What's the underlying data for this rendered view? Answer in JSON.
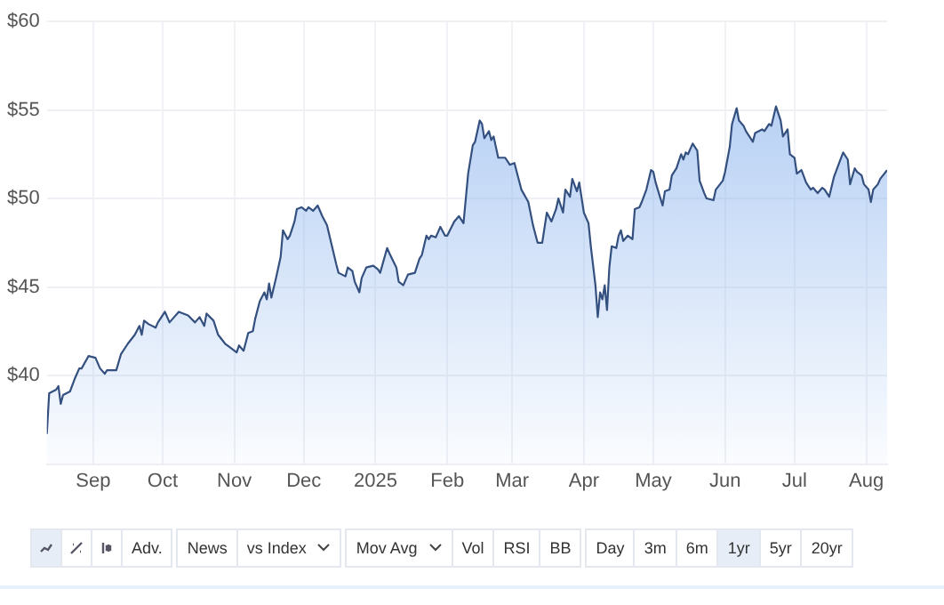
{
  "chart_data": {
    "type": "area",
    "x": [
      "2024-08-12",
      "2024-08-13",
      "2024-08-16",
      "2024-08-17",
      "2024-08-18",
      "2024-08-19",
      "2024-08-22",
      "2024-08-24",
      "2024-08-26",
      "2024-08-27",
      "2024-08-30",
      "2024-09-02",
      "2024-09-04",
      "2024-09-06",
      "2024-09-07",
      "2024-09-11",
      "2024-09-13",
      "2024-09-16",
      "2024-09-19",
      "2024-09-21",
      "2024-09-22",
      "2024-09-23",
      "2024-09-25",
      "2024-09-28",
      "2024-09-29",
      "2024-10-02",
      "2024-10-04",
      "2024-10-06",
      "2024-10-08",
      "2024-10-12",
      "2024-10-15",
      "2024-10-17",
      "2024-10-19",
      "2024-10-20",
      "2024-10-23",
      "2024-10-25",
      "2024-10-28",
      "2024-10-31",
      "2024-11-02",
      "2024-11-03",
      "2024-11-05",
      "2024-11-07",
      "2024-11-09",
      "2024-11-10",
      "2024-11-12",
      "2024-11-14",
      "2024-11-15",
      "2024-11-16",
      "2024-11-17",
      "2024-11-19",
      "2024-11-21",
      "2024-11-22",
      "2024-11-24",
      "2024-11-25",
      "2024-11-27",
      "2024-11-28",
      "2024-11-30",
      "2024-12-02",
      "2024-12-03",
      "2024-12-05",
      "2024-12-07",
      "2024-12-09",
      "2024-12-11",
      "2024-12-13",
      "2024-12-15",
      "2024-12-16",
      "2024-12-19",
      "2024-12-20",
      "2024-12-22",
      "2024-12-23",
      "2024-12-25",
      "2024-12-26",
      "2024-12-28",
      "2024-12-31",
      "2025-01-02",
      "2025-01-03",
      "2025-01-06",
      "2025-01-07",
      "2025-01-10",
      "2025-01-11",
      "2025-01-13",
      "2025-01-15",
      "2025-01-18",
      "2025-01-20",
      "2025-01-21",
      "2025-01-23",
      "2025-01-24",
      "2025-01-25",
      "2025-01-27",
      "2025-01-29",
      "2025-01-31",
      "2025-02-01",
      "2025-02-04",
      "2025-02-06",
      "2025-02-08",
      "2025-02-10",
      "2025-02-12",
      "2025-02-13",
      "2025-02-15",
      "2025-02-16",
      "2025-02-17",
      "2025-02-19",
      "2025-02-20",
      "2025-02-21",
      "2025-02-23",
      "2025-02-26",
      "2025-02-28",
      "2025-03-02",
      "2025-03-03",
      "2025-03-05",
      "2025-03-08",
      "2025-03-10",
      "2025-03-12",
      "2025-03-14",
      "2025-03-16",
      "2025-03-18",
      "2025-03-20",
      "2025-03-21",
      "2025-03-23",
      "2025-03-24",
      "2025-03-26",
      "2025-03-27",
      "2025-03-29",
      "2025-03-30",
      "2025-04-01",
      "2025-04-03",
      "2025-04-04",
      "2025-04-06",
      "2025-04-07",
      "2025-04-08",
      "2025-04-09",
      "2025-04-10",
      "2025-04-11",
      "2025-04-12",
      "2025-04-13",
      "2025-04-15",
      "2025-04-16",
      "2025-04-17",
      "2025-04-18",
      "2025-04-20",
      "2025-04-22",
      "2025-04-23",
      "2025-04-25",
      "2025-04-26",
      "2025-04-28",
      "2025-04-30",
      "2025-05-01",
      "2025-05-02",
      "2025-05-05",
      "2025-05-06",
      "2025-05-08",
      "2025-05-09",
      "2025-05-11",
      "2025-05-13",
      "2025-05-14",
      "2025-05-15",
      "2025-05-16",
      "2025-05-18",
      "2025-05-20",
      "2025-05-21",
      "2025-05-23",
      "2025-05-24",
      "2025-05-27",
      "2025-05-28",
      "2025-05-31",
      "2025-06-01",
      "2025-06-03",
      "2025-06-04",
      "2025-06-06",
      "2025-06-07",
      "2025-06-09",
      "2025-06-10",
      "2025-06-13",
      "2025-06-14",
      "2025-06-17",
      "2025-06-18",
      "2025-06-20",
      "2025-06-21",
      "2025-06-23",
      "2025-06-25",
      "2025-06-26",
      "2025-06-28",
      "2025-06-29",
      "2025-07-01",
      "2025-07-02",
      "2025-07-04",
      "2025-07-06",
      "2025-07-08",
      "2025-07-09",
      "2025-07-11",
      "2025-07-13",
      "2025-07-14",
      "2025-07-16",
      "2025-07-18",
      "2025-07-20",
      "2025-07-22",
      "2025-07-24",
      "2025-07-25",
      "2025-07-27",
      "2025-07-28",
      "2025-07-30",
      "2025-07-31",
      "2025-08-02",
      "2025-08-03",
      "2025-08-04",
      "2025-08-06",
      "2025-08-07",
      "2025-08-10"
    ],
    "series": [
      {
        "color": "#34507f",
        "values": [
          36.7,
          39.0,
          39.2,
          39.4,
          38.4,
          38.9,
          39.1,
          39.8,
          40.4,
          40.4,
          41.1,
          41.0,
          40.4,
          40.1,
          40.3,
          40.3,
          41.2,
          41.8,
          42.3,
          42.8,
          42.3,
          43.1,
          42.9,
          42.7,
          43.0,
          43.6,
          43.0,
          43.3,
          43.6,
          43.4,
          43.0,
          43.3,
          42.8,
          43.5,
          43.1,
          42.3,
          41.8,
          41.5,
          41.3,
          41.7,
          41.4,
          42.4,
          42.5,
          43.2,
          44.2,
          44.7,
          44.3,
          45.2,
          44.4,
          45.5,
          46.7,
          48.2,
          47.7,
          47.9,
          48.7,
          49.4,
          49.5,
          49.3,
          49.5,
          49.3,
          49.6,
          49.0,
          48.5,
          47.4,
          46.3,
          45.8,
          45.6,
          46.1,
          45.9,
          45.3,
          44.7,
          45.5,
          46.1,
          46.2,
          46.0,
          45.8,
          47.2,
          46.9,
          46.1,
          45.3,
          45.1,
          45.7,
          45.8,
          46.6,
          46.8,
          47.9,
          47.7,
          47.9,
          47.8,
          48.4,
          47.9,
          47.9,
          48.7,
          49.0,
          48.6,
          51.4,
          53.0,
          53.2,
          54.4,
          54.2,
          53.4,
          53.8,
          53.3,
          53.5,
          52.3,
          52.3,
          51.9,
          52.0,
          51.5,
          50.5,
          49.8,
          48.5,
          47.5,
          47.5,
          49.2,
          48.7,
          49.4,
          50.0,
          49.2,
          50.5,
          50.1,
          51.1,
          50.4,
          50.9,
          49.2,
          48.6,
          47.3,
          45.1,
          43.3,
          44.7,
          44.3,
          45.1,
          43.7,
          46.1,
          47.3,
          47.2,
          47.9,
          48.2,
          47.6,
          47.9,
          47.7,
          49.4,
          49.5,
          49.8,
          50.5,
          51.6,
          51.5,
          50.9,
          49.6,
          50.4,
          50.5,
          51.3,
          51.7,
          52.5,
          52.2,
          52.6,
          52.5,
          53.1,
          52.7,
          51.0,
          50.3,
          50.0,
          49.9,
          50.5,
          51.0,
          51.5,
          52.9,
          54.2,
          55.1,
          54.4,
          54.1,
          53.8,
          53.2,
          53.7,
          53.9,
          53.8,
          54.2,
          54.1,
          55.2,
          54.4,
          53.5,
          53.9,
          52.5,
          52.3,
          51.4,
          51.6,
          50.9,
          50.5,
          50.6,
          50.3,
          50.6,
          50.5,
          50.1,
          51.2,
          51.9,
          52.6,
          52.2,
          50.8,
          51.7,
          51.5,
          51.3,
          50.8,
          50.5,
          49.8,
          50.5,
          50.8,
          51.1,
          51.6
        ]
      }
    ],
    "xlim": [
      "2024-08-12",
      "2025-08-10"
    ],
    "xticks": [
      {
        "value": "2024-09-01",
        "label": "Sep"
      },
      {
        "value": "2024-10-01",
        "label": "Oct"
      },
      {
        "value": "2024-11-01",
        "label": "Nov"
      },
      {
        "value": "2024-12-01",
        "label": "Dec"
      },
      {
        "value": "2025-01-01",
        "label": "2025"
      },
      {
        "value": "2025-02-01",
        "label": "Feb"
      },
      {
        "value": "2025-03-01",
        "label": "Mar"
      },
      {
        "value": "2025-04-01",
        "label": "Apr"
      },
      {
        "value": "2025-05-01",
        "label": "May"
      },
      {
        "value": "2025-06-01",
        "label": "Jun"
      },
      {
        "value": "2025-07-01",
        "label": "Jul"
      },
      {
        "value": "2025-08-01",
        "label": "Aug"
      }
    ],
    "ylim": [
      35,
      60
    ],
    "yticks": [
      {
        "value": 40,
        "label": "$40"
      },
      {
        "value": 45,
        "label": "$45"
      },
      {
        "value": 50,
        "label": "$50"
      },
      {
        "value": 55,
        "label": "$55"
      },
      {
        "value": 60,
        "label": "$60"
      }
    ],
    "grid": true,
    "annotations": [
      "Adv.",
      "News",
      "vs Index",
      "Mov Avg",
      "Vol",
      "RSI",
      "BB",
      "Day",
      "3m",
      "6m",
      "1yr",
      "5yr",
      "20yr"
    ]
  }
}
